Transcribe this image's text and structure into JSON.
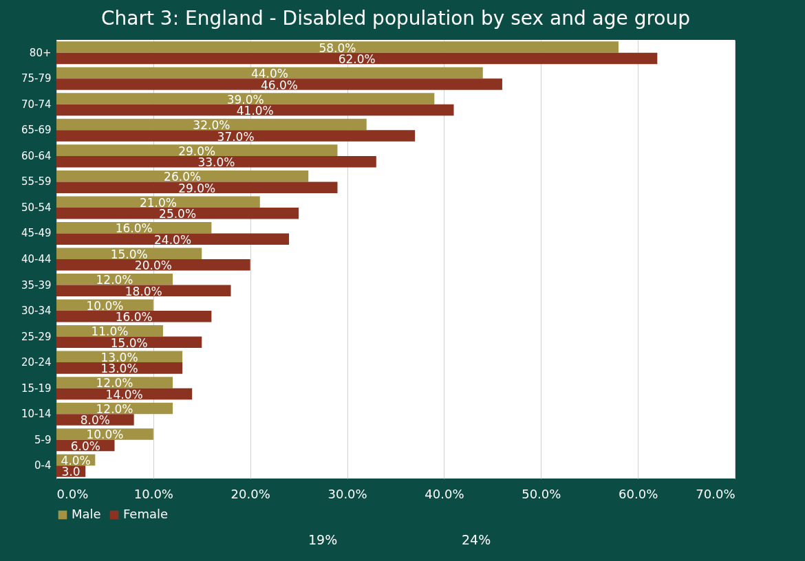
{
  "chart_data": {
    "type": "bar",
    "orientation": "horizontal",
    "title": "Chart 3: England - Disabled population by sex and age group",
    "categories": [
      "80+",
      "75-79",
      "70-74",
      "65-69",
      "60-64",
      "55-59",
      "50-54",
      "45-49",
      "40-44",
      "35-39",
      "30-34",
      "25-29",
      "20-24",
      "15-19",
      "10-14",
      "5-9",
      "0-4"
    ],
    "series": [
      {
        "name": "Male",
        "color": "#a39344",
        "values": [
          58,
          44,
          39,
          32,
          29,
          26,
          21,
          16,
          15,
          12,
          10,
          11,
          13,
          12,
          12,
          10,
          4
        ],
        "value_labels": [
          "58.0%",
          "44.0%",
          "39.0%",
          "32.0%",
          "29.0%",
          "26.0%",
          "21.0%",
          "16.0%",
          "15.0%",
          "12.0%",
          "10.0%",
          "11.0%",
          "13.0%",
          "12.0%",
          "12.0%",
          "10.0%",
          "4.0%"
        ]
      },
      {
        "name": "Female",
        "color": "#8b3320",
        "values": [
          62,
          46,
          41,
          37,
          33,
          29,
          25,
          24,
          20,
          18,
          16,
          15,
          13,
          14,
          8,
          6,
          3
        ],
        "value_labels": [
          "62.0%",
          "46.0%",
          "41.0%",
          "37.0%",
          "33.0%",
          "29.0%",
          "25.0%",
          "24.0%",
          "20.0%",
          "18.0%",
          "16.0%",
          "15.0%",
          "13.0%",
          "14.0%",
          "8.0%",
          "6.0%",
          "3.0"
        ]
      }
    ],
    "xlim": [
      0,
      70
    ],
    "xticks": [
      {
        "value": 0,
        "label": "0.0%"
      },
      {
        "value": 10,
        "label": "10.0%"
      },
      {
        "value": 20,
        "label": "20.0%"
      },
      {
        "value": 30,
        "label": "30.0%"
      },
      {
        "value": 40,
        "label": "40.0%"
      },
      {
        "value": 50,
        "label": "50.0%"
      },
      {
        "value": 60,
        "label": "60.0%"
      },
      {
        "value": 70,
        "label": "70.0%"
      }
    ],
    "grid": "x",
    "legend": "bottom",
    "annotations": [
      "19%",
      "24%"
    ]
  }
}
